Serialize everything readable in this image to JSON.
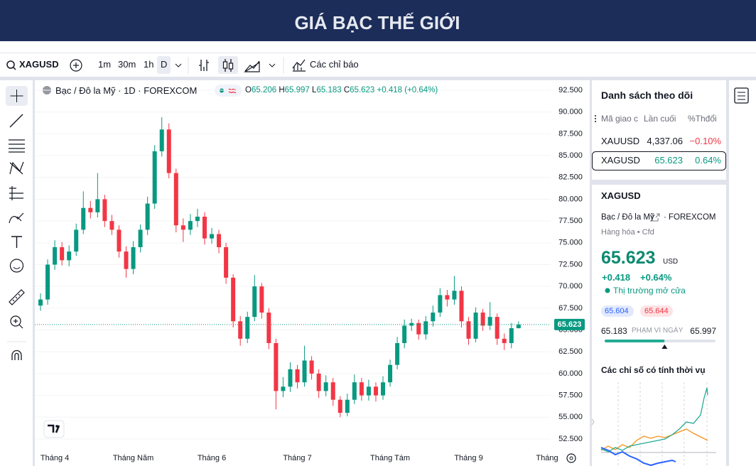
{
  "header": {
    "title": "GIÁ BẠC THẾ GIỚI"
  },
  "toolbar": {
    "symbol": "XAGUSD",
    "intervals": [
      "1m",
      "30m",
      "1h",
      "D"
    ],
    "indicators": "Các chỉ báo"
  },
  "legend": {
    "name": "Bạc / Đô la Mỹ · 1D · FOREXCOM",
    "items": [
      {
        "key": "O",
        "value": "65.206"
      },
      {
        "key": "H",
        "value": "65.997"
      },
      {
        "key": "L",
        "value": "65.183"
      },
      {
        "key": "C",
        "value": "65.623"
      }
    ],
    "change": "+0.418 (+0.64%)"
  },
  "chart_data": {
    "type": "candlestick",
    "categories": [
      null,
      null,
      "Tháng 4",
      null,
      null,
      null,
      null,
      null,
      null,
      null,
      null,
      null,
      null,
      "Tháng Năm",
      null,
      null,
      null,
      null,
      null,
      null,
      null,
      null,
      null,
      null,
      "Tháng 6",
      null,
      null,
      null,
      null,
      null,
      null,
      null,
      null,
      null,
      null,
      null,
      "Tháng 7",
      null,
      null,
      null,
      null,
      null,
      null,
      null,
      null,
      null,
      null,
      null,
      null,
      "Tháng Tám",
      null,
      null,
      null,
      null,
      null,
      null,
      null,
      null,
      null,
      null,
      "Tháng 9",
      null,
      null,
      null,
      null,
      null,
      null,
      null,
      null,
      null,
      null,
      "Tháng"
    ],
    "open": [
      67.8,
      68.5,
      72.5,
      74.5,
      73,
      74,
      76.5,
      79,
      78.5,
      80,
      77.5,
      76.5,
      74,
      72,
      74.5,
      76.5,
      79.5,
      85.5,
      88,
      83,
      77,
      76.5,
      77.5,
      78,
      75.5,
      76,
      74.5,
      71,
      66,
      64,
      66.5,
      70,
      67,
      63.5,
      58,
      58.5,
      60.5,
      59,
      61.5,
      60,
      58,
      59,
      57,
      55.5,
      57,
      59,
      57.5,
      58.5,
      57.5,
      59,
      61,
      63.5,
      65.5,
      65.8,
      64.5,
      66,
      67,
      69,
      68.5,
      69.5,
      66,
      64,
      67,
      65.5,
      66.5,
      64,
      63.5,
      65.206,
      null,
      null,
      null,
      null
    ],
    "high": [
      69.2,
      73.1,
      75.3,
      75.1,
      74.7,
      77.2,
      80.9,
      79.8,
      83,
      80.5,
      78.2,
      77,
      74.6,
      75.2,
      77.1,
      80.3,
      86.2,
      89.4,
      88.7,
      83.5,
      77.8,
      78.3,
      78.9,
      78.5,
      76.7,
      76.5,
      75,
      71.4,
      66.6,
      67.1,
      71.3,
      70.4,
      67.5,
      64,
      59.6,
      61.3,
      61,
      63.2,
      62,
      60.5,
      59.8,
      59.5,
      57.4,
      57.7,
      59.9,
      59.5,
      59.3,
      59,
      59.7,
      61.6,
      64.2,
      66.2,
      66.3,
      66.2,
      66.6,
      67.8,
      69.8,
      69.6,
      71.2,
      70,
      66.5,
      67.6,
      67.4,
      68.2,
      66.9,
      64.6,
      65.8,
      65.997,
      null,
      null,
      null,
      null
    ],
    "low": [
      67.2,
      67.9,
      71.9,
      72.4,
      72.3,
      73.5,
      76,
      77.8,
      77.9,
      76.8,
      75.9,
      73.3,
      71,
      71.4,
      73.9,
      75.9,
      78.9,
      84.9,
      82.4,
      76.2,
      75.1,
      75.9,
      76.8,
      74.8,
      74.9,
      73.8,
      70.3,
      65.3,
      63.2,
      63.5,
      66,
      66.3,
      62.8,
      55.9,
      57.3,
      57.9,
      58.3,
      58.5,
      59.3,
      57.2,
      57.4,
      56.3,
      55,
      55.1,
      56.5,
      56.9,
      56.9,
      56.8,
      57,
      58.5,
      60.5,
      62.9,
      64.9,
      63.9,
      63.9,
      65.4,
      66.5,
      67.7,
      67.9,
      65.3,
      63.3,
      63.6,
      64.9,
      65,
      63.3,
      62.7,
      62.9,
      65.183,
      null,
      null,
      null,
      null
    ],
    "close": [
      68.5,
      72.5,
      74.5,
      73,
      74,
      76.5,
      79,
      78.5,
      80,
      77.5,
      76.5,
      74,
      72,
      74.5,
      76.5,
      79.5,
      85.5,
      88,
      83,
      77,
      76.5,
      77.5,
      78,
      75.5,
      76,
      74.5,
      71,
      66,
      64,
      66.5,
      70,
      67,
      63.5,
      58,
      58.5,
      60.5,
      59,
      61.5,
      60,
      58,
      59,
      57,
      55.5,
      57,
      59,
      57.5,
      58.5,
      57.5,
      59,
      61,
      63.5,
      65.5,
      65.8,
      64.5,
      66,
      67,
      69,
      68.5,
      69.5,
      66,
      64,
      67,
      65.5,
      66.5,
      64,
      63.5,
      65.206,
      65.623,
      null,
      null,
      null,
      null
    ],
    "up_color": "#089981",
    "down_color": "#f23645",
    "ylim": [
      51.52,
      93.48
    ],
    "yticks": [
      {
        "value": 52.5,
        "label": "52.500"
      },
      {
        "value": 55,
        "label": "55.000"
      },
      {
        "value": 57.5,
        "label": "57.500"
      },
      {
        "value": 60,
        "label": "60.000"
      },
      {
        "value": 62.5,
        "label": "62.500"
      },
      {
        "value": 65,
        "label": "65.000"
      },
      {
        "value": 67.5,
        "label": "67.500"
      },
      {
        "value": 70,
        "label": "70.000"
      },
      {
        "value": 72.5,
        "label": "72.500"
      },
      {
        "value": 75,
        "label": "75.000"
      },
      {
        "value": 77.5,
        "label": "77.500"
      },
      {
        "value": 80,
        "label": "80.000"
      },
      {
        "value": 82.5,
        "label": "82.500"
      },
      {
        "value": 85,
        "label": "85.000"
      },
      {
        "value": 87.5,
        "label": "87.500"
      },
      {
        "value": 90,
        "label": "90.000"
      },
      {
        "value": 92.5,
        "label": "92.500"
      }
    ],
    "grid": true
  },
  "watchlist": {
    "title": "Danh sách theo dõi",
    "columns": [
      "Mã giao c",
      "Lần cuối",
      "%Thđổi"
    ],
    "rows": [
      [
        "XAUUSD",
        "4,337.06",
        "−0.10%"
      ],
      [
        "XAGUSD",
        "65.623",
        "0.64%"
      ]
    ]
  },
  "details": {
    "symbol": "XAGUSD",
    "description": "Bạc / Đô la Mỹ",
    "exchange": "· FOREXCOM",
    "category": "Hàng hóa • Cfd",
    "price": "65.623",
    "currency": "USD",
    "change": "+0.418",
    "change_percent": "+0.64%",
    "status": "Thị trường mở cửa",
    "bid": "65.604",
    "ask": "65.644",
    "range_low": "65.183",
    "range_label": "PHẠM VI NGÀY",
    "range_high": "65.997",
    "seasonal_title": "Các chỉ số có tính thời vụ"
  }
}
